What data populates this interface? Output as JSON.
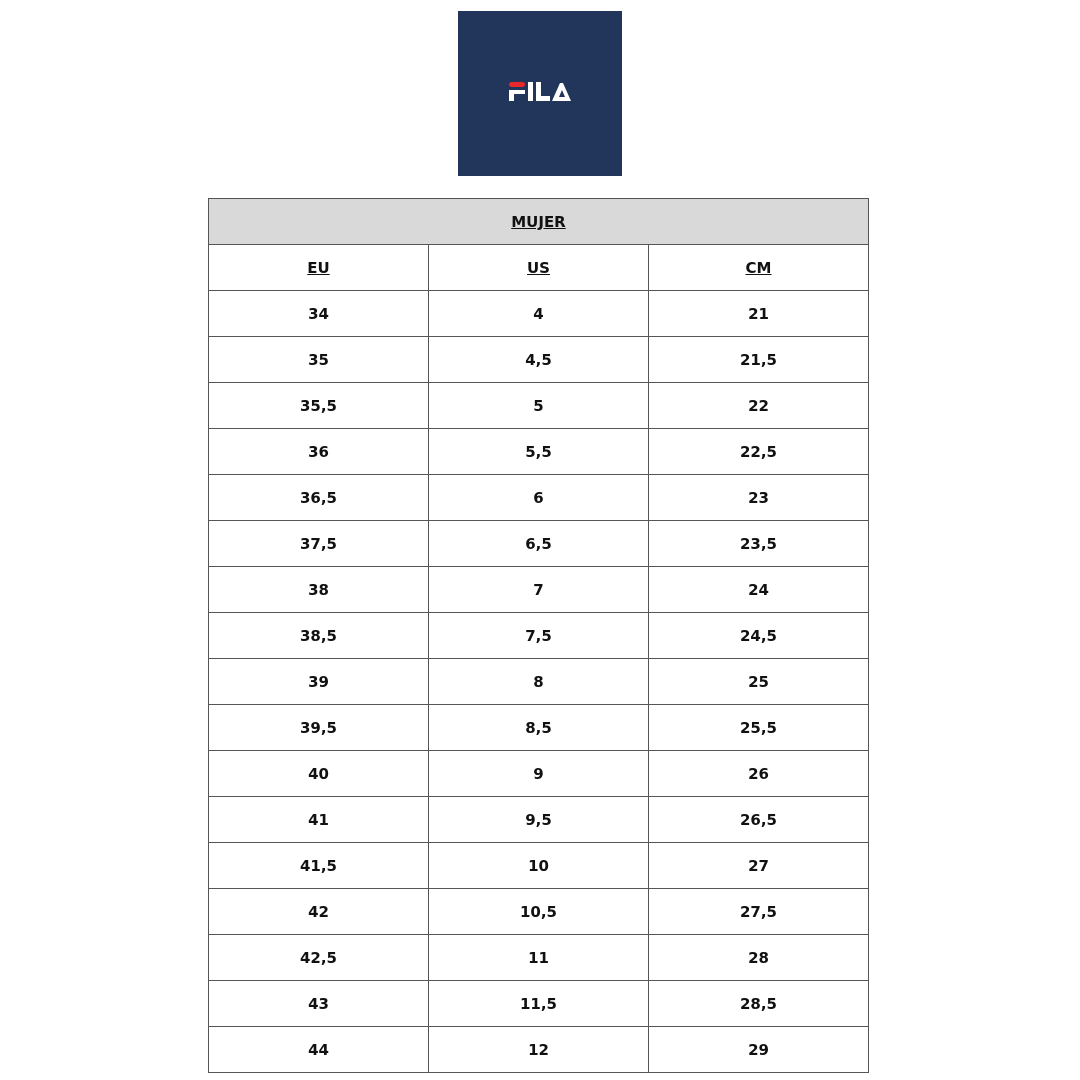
{
  "logo": {
    "text": "FILA",
    "colors": {
      "background": "#22355b",
      "red": "#e8282b",
      "white": "#ffffff"
    }
  },
  "table": {
    "title": "MUJER",
    "headers": [
      "EU",
      "US",
      "CM"
    ],
    "rows": [
      [
        "34",
        "4",
        "21"
      ],
      [
        "35",
        "4,5",
        "21,5"
      ],
      [
        "35,5",
        "5",
        "22"
      ],
      [
        "36",
        "5,5",
        "22,5"
      ],
      [
        "36,5",
        "6",
        "23"
      ],
      [
        "37,5",
        "6,5",
        "23,5"
      ],
      [
        "38",
        "7",
        "24"
      ],
      [
        "38,5",
        "7,5",
        "24,5"
      ],
      [
        "39",
        "8",
        "25"
      ],
      [
        "39,5",
        "8,5",
        "25,5"
      ],
      [
        "40",
        "9",
        "26"
      ],
      [
        "41",
        "9,5",
        "26,5"
      ],
      [
        "41,5",
        "10",
        "27"
      ],
      [
        "42",
        "10,5",
        "27,5"
      ],
      [
        "42,5",
        "11",
        "28"
      ],
      [
        "43",
        "11,5",
        "28,5"
      ],
      [
        "44",
        "12",
        "29"
      ]
    ]
  }
}
